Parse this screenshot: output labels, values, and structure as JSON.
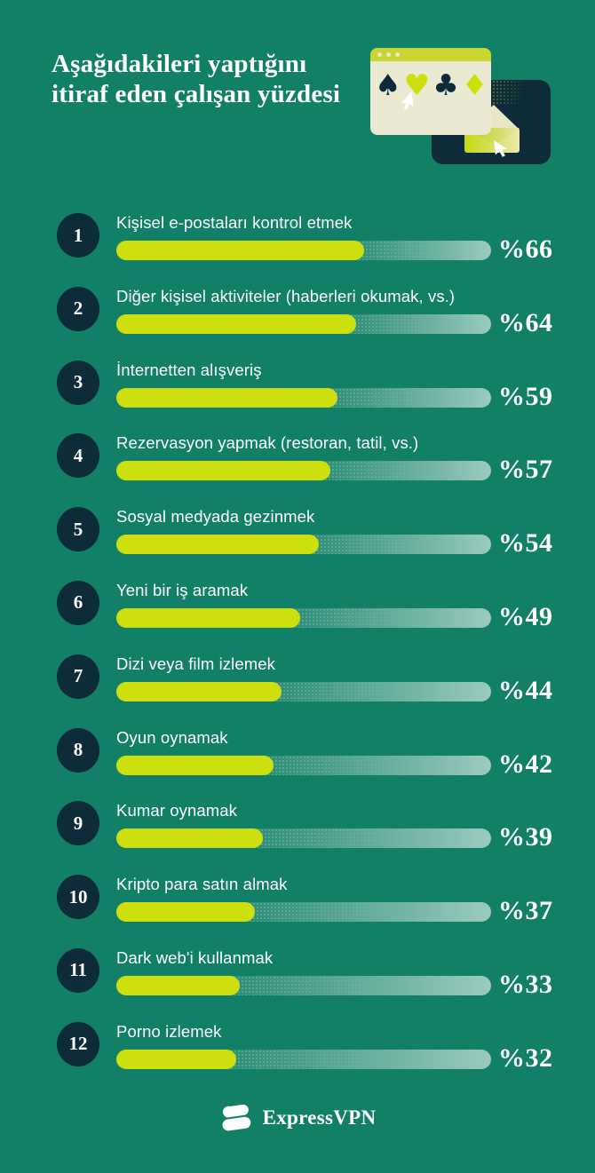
{
  "page": {
    "background": "#128066"
  },
  "title": "Aşağıdakileri yaptığını itiraf eden çalışan yüzdesi",
  "chart_data": {
    "type": "bar",
    "orientation": "horizontal",
    "title": "Aşağıdakileri yaptığını itiraf eden çalışan yüzdesi",
    "categories": [
      "Kişisel e-postaları kontrol etmek",
      "Diğer kişisel aktiviteler (haberleri okumak, vs.)",
      "İnternetten alışveriş",
      "Rezervasyon yapmak (restoran, tatil, vs.)",
      "Sosyal medyada gezinmek",
      "Yeni bir iş aramak",
      "Dizi veya film izlemek",
      "Oyun oynamak",
      "Kumar oynamak",
      "Kripto para satın almak",
      "Dark web'i kullanmak",
      "Porno izlemek"
    ],
    "values": [
      66,
      64,
      59,
      57,
      54,
      49,
      44,
      42,
      39,
      37,
      33,
      32
    ],
    "value_prefix": "%",
    "xlim": [
      0,
      100
    ],
    "bar_color": "#cde00e",
    "track_color_gradient": [
      "rgba(255,255,255,0.10)",
      "rgba(255,255,255,0.58)"
    ],
    "grid": false,
    "legend": false
  },
  "rows": [
    {
      "rank": "1",
      "label": "Kişisel e-postaları kontrol etmek",
      "value": 66,
      "display": "%66"
    },
    {
      "rank": "2",
      "label": "Diğer kişisel aktiviteler (haberleri okumak, vs.)",
      "value": 64,
      "display": "%64"
    },
    {
      "rank": "3",
      "label": "İnternetten alışveriş",
      "value": 59,
      "display": "%59"
    },
    {
      "rank": "4",
      "label": "Rezervasyon yapmak (restoran, tatil, vs.)",
      "value": 57,
      "display": "%57"
    },
    {
      "rank": "5",
      "label": "Sosyal medyada gezinmek",
      "value": 54,
      "display": "%54"
    },
    {
      "rank": "6",
      "label": "Yeni bir iş aramak",
      "value": 49,
      "display": "%49"
    },
    {
      "rank": "7",
      "label": "Dizi veya film izlemek",
      "value": 44,
      "display": "%44"
    },
    {
      "rank": "8",
      "label": "Oyun oynamak",
      "value": 42,
      "display": "%42"
    },
    {
      "rank": "9",
      "label": "Kumar oynamak",
      "value": 39,
      "display": "%39"
    },
    {
      "rank": "10",
      "label": "Kripto para satın almak",
      "value": 37,
      "display": "%37"
    },
    {
      "rank": "11",
      "label": "Dark web'i kullanmak",
      "value": 33,
      "display": "%33"
    },
    {
      "rank": "12",
      "label": "Porno izlemek",
      "value": 32,
      "display": "%32"
    }
  ],
  "illustration": {
    "suits": [
      {
        "name": "spade-icon",
        "char": "♠",
        "tone": "navy"
      },
      {
        "name": "heart-icon",
        "char": "♥",
        "tone": "yellow"
      },
      {
        "name": "club-icon",
        "char": "♣",
        "tone": "navy"
      },
      {
        "name": "diamond-icon",
        "char": "♦",
        "tone": "yellow"
      }
    ],
    "other_icons": [
      "browser-window-icon",
      "browser-card-icon",
      "envelope-icon",
      "cursor-icon"
    ]
  },
  "footer": {
    "brand": "ExpressVPN"
  },
  "colors": {
    "background": "#128066",
    "navy": "#0d2b38",
    "accent_yellow": "#cde00e",
    "cream": "#ece9d2",
    "titlebar_olive": "#c9d531",
    "text": "#ffffff"
  }
}
